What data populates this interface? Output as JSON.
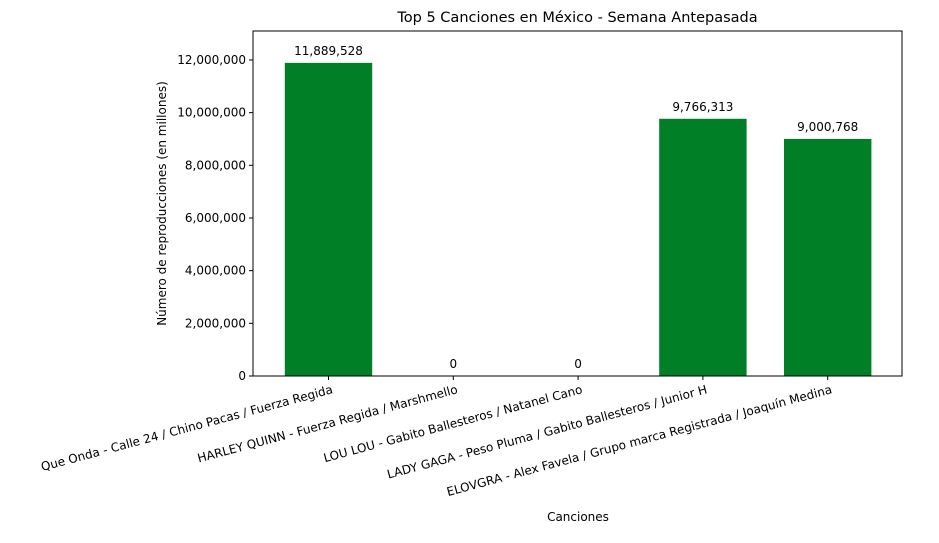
{
  "chart_data": {
    "type": "bar",
    "title": "Top 5 Canciones en México - Semana Antepasada",
    "xlabel": "Canciones",
    "ylabel": "Número de reproducciones (en millones)",
    "categories": [
      "Que Onda - Calle 24 / Chino Pacas / Fuerza Regida",
      "HARLEY QUINN - Fuerza Regida / Marshmello",
      "LOU LOU - Gabito Ballesteros / Natanel Cano",
      "LADY GAGA - Peso Pluma / Gabito Ballesteros / Junior H",
      "ELOVGRA - Alex Favela / Grupo marca Registrada / Joaquín Medina"
    ],
    "values": [
      11889528,
      0,
      0,
      9766313,
      9000768
    ],
    "data_labels": [
      "11,889,528",
      "0",
      "0",
      "9,766,313",
      "9,000,768"
    ],
    "ylim": [
      0,
      13100000
    ],
    "yticks": [
      0,
      2000000,
      4000000,
      6000000,
      8000000,
      10000000,
      12000000
    ],
    "ytick_labels": [
      "0",
      "2,000,000",
      "4,000,000",
      "6,000,000",
      "8,000,000",
      "10,000,000",
      "12,000,000"
    ],
    "bar_color": "#007f26",
    "grid": false,
    "legend": false
  }
}
